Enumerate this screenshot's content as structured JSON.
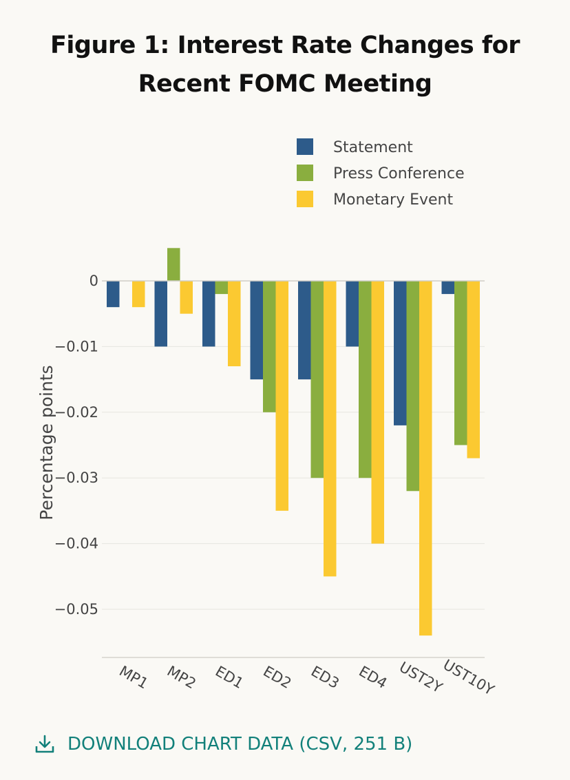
{
  "title_line1": "Figure 1: Interest Rate Changes for",
  "title_line2": "Recent FOMC Meeting",
  "download_label": "DOWNLOAD CHART DATA (CSV, 251 B)",
  "download_icon": "download-icon",
  "chart_data": {
    "type": "bar",
    "title": "Figure 1: Interest Rate Changes for Recent FOMC Meeting",
    "xlabel": "",
    "ylabel": "Percentage points",
    "categories": [
      "MP1",
      "MP2",
      "ED1",
      "ED2",
      "ED3",
      "ED4",
      "UST2Y",
      "UST10Y"
    ],
    "series": [
      {
        "name": "Statement",
        "color": "#2d5b8a",
        "values": [
          -0.004,
          -0.01,
          -0.01,
          -0.015,
          -0.015,
          -0.01,
          -0.022,
          -0.002
        ]
      },
      {
        "name": "Press Conference",
        "color": "#8aae3f",
        "values": [
          0,
          0.005,
          -0.002,
          -0.02,
          -0.03,
          -0.03,
          -0.032,
          -0.025
        ]
      },
      {
        "name": "Monetary Event",
        "color": "#fbc931",
        "values": [
          -0.004,
          -0.005,
          -0.013,
          -0.035,
          -0.045,
          -0.04,
          -0.054,
          -0.027
        ]
      }
    ],
    "yticks": [
      0,
      -0.01,
      -0.02,
      -0.03,
      -0.04,
      -0.05
    ],
    "ytick_labels": [
      "0",
      "−0.01",
      "−0.02",
      "−0.03",
      "−0.04",
      "−0.05"
    ],
    "ylim": [
      -0.0575,
      0.0065
    ],
    "grid": true,
    "legend": "top-right"
  }
}
